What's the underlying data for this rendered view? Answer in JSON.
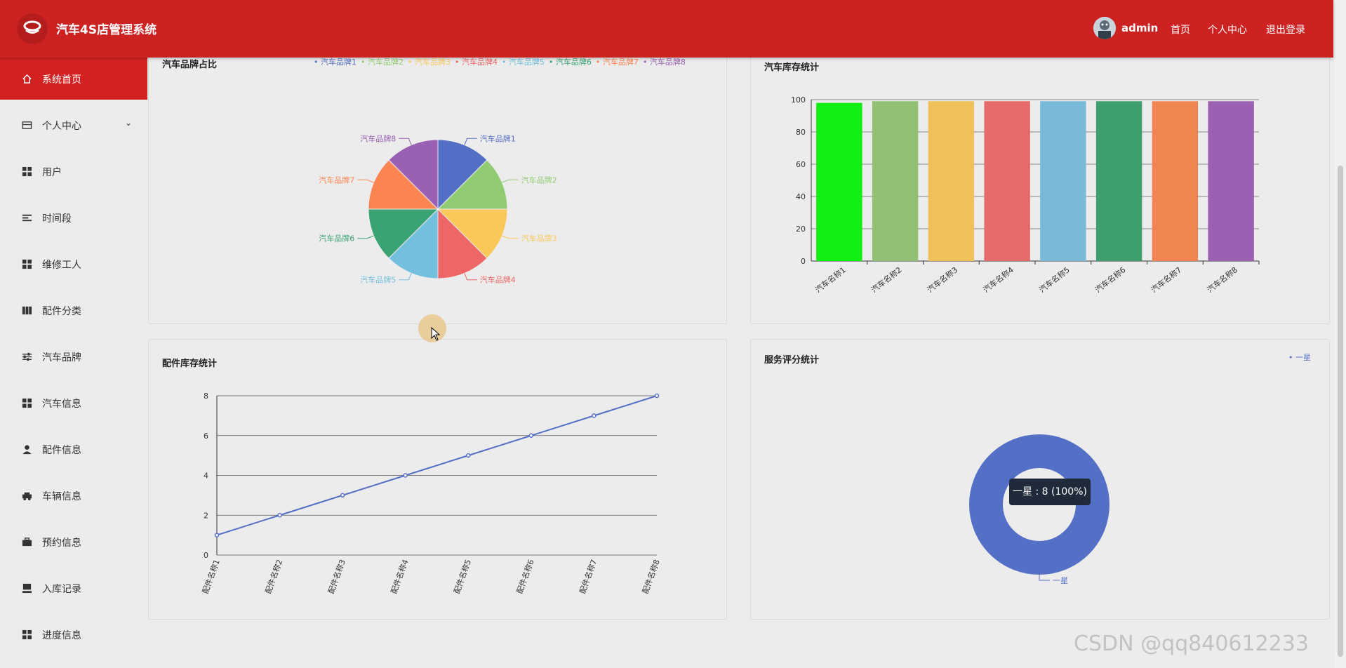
{
  "header": {
    "title": "汽车4S店管理系统",
    "username": "admin",
    "nav": [
      "首页",
      "个人中心",
      "退出登录"
    ]
  },
  "sidebar": {
    "items": [
      {
        "label": "系统首页",
        "icon": "home-icon",
        "active": true
      },
      {
        "label": "个人中心",
        "icon": "card-icon",
        "has_children": true
      },
      {
        "label": "用户",
        "icon": "grid-icon"
      },
      {
        "label": "时间段",
        "icon": "list-icon"
      },
      {
        "label": "维修工人",
        "icon": "grid-icon"
      },
      {
        "label": "配件分类",
        "icon": "book-icon"
      },
      {
        "label": "汽车品牌",
        "icon": "sliders-icon"
      },
      {
        "label": "汽车信息",
        "icon": "grid-icon"
      },
      {
        "label": "配件信息",
        "icon": "person-icon"
      },
      {
        "label": "车辆信息",
        "icon": "car-icon"
      },
      {
        "label": "预约信息",
        "icon": "briefcase-icon"
      },
      {
        "label": "入库记录",
        "icon": "monitor-icon"
      },
      {
        "label": "进度信息",
        "icon": "grid-icon"
      }
    ]
  },
  "colors": {
    "header": "#cc2222",
    "active": "#d42222",
    "palette": [
      "#5470c6",
      "#91cc75",
      "#fac858",
      "#ee6666",
      "#73c0de",
      "#3ba272",
      "#fc8452",
      "#9a60b4"
    ]
  },
  "chart_data": [
    {
      "type": "pie",
      "title": "汽车品牌占比",
      "labels": [
        "汽车品牌1",
        "汽车品牌2",
        "汽车品牌3",
        "汽车品牌4",
        "汽车品牌5",
        "汽车品牌6",
        "汽车品牌7",
        "汽车品牌8"
      ],
      "values": [
        1,
        1,
        1,
        1,
        1,
        1,
        1,
        1
      ],
      "legend": "top"
    },
    {
      "type": "bar",
      "title": "汽车库存统计",
      "categories": [
        "汽车名称1",
        "汽车名称2",
        "汽车名称3",
        "汽车名称4",
        "汽车名称5",
        "汽车名称6",
        "汽车名称7",
        "汽车名称8"
      ],
      "values": [
        98,
        99,
        99,
        99,
        99,
        99,
        99,
        99
      ],
      "ylim": [
        0,
        100
      ],
      "yticks": [
        0,
        20,
        40,
        60,
        80,
        100
      ],
      "colors": [
        "#11ee11",
        "#91c075",
        "#f0c05a",
        "#e56a6a",
        "#78bad8",
        "#3f9e6e",
        "#f08552",
        "#9c60b2"
      ],
      "grid": true
    },
    {
      "type": "line",
      "title": "配件库存统计",
      "categories": [
        "配件名称1",
        "配件名称2",
        "配件名称3",
        "配件名称4",
        "配件名称5",
        "配件名称6",
        "配件名称7",
        "配件名称8"
      ],
      "values": [
        1,
        2,
        3,
        4,
        5,
        6,
        7,
        8
      ],
      "ylim": [
        0,
        8
      ],
      "yticks": [
        0,
        2,
        4,
        6,
        8
      ],
      "grid": true
    },
    {
      "type": "pie",
      "title": "服务评分统计",
      "labels": [
        "一星"
      ],
      "values": [
        8
      ],
      "legend": "top-right",
      "tooltip": "一星 : 8 (100%)"
    }
  ],
  "watermark": "CSDN @qq840612233"
}
